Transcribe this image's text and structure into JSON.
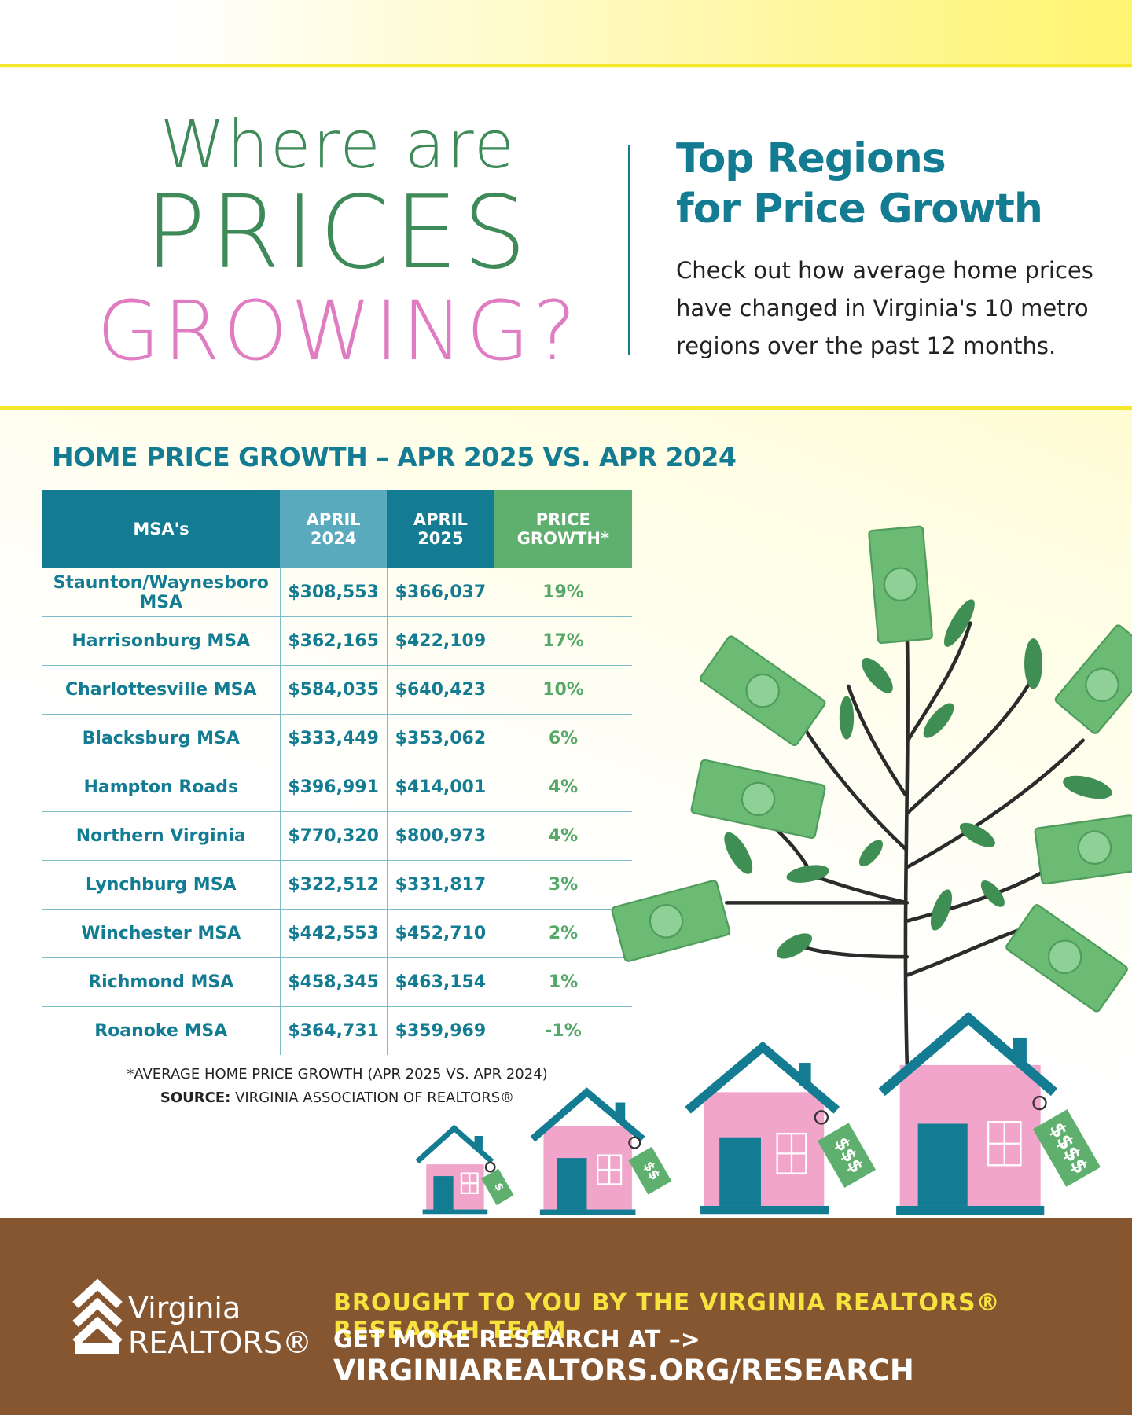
{
  "header": {
    "title_line1": "Where are",
    "title_line2": "PRICES",
    "title_line3": "GROWING?",
    "subtitle_line1": "Top Regions",
    "subtitle_line2": "for Price Growth",
    "description": "Check out how average home prices have changed in Virginia's 10 metro regions over the past 12 months."
  },
  "table": {
    "title": "HOME PRICE GROWTH – APR 2025 VS. APR 2024",
    "columns": [
      "MSA's",
      "APRIL 2024",
      "APRIL 2025",
      "PRICE GROWTH*"
    ],
    "rows": [
      [
        "Staunton/Waynesboro MSA",
        "$308,553",
        "$366,037",
        "19%"
      ],
      [
        "Harrisonburg MSA",
        "$362,165",
        "$422,109",
        "17%"
      ],
      [
        "Charlottesville MSA",
        "$584,035",
        "$640,423",
        "10%"
      ],
      [
        "Blacksburg MSA",
        "$333,449",
        "$353,062",
        "6%"
      ],
      [
        "Hampton Roads",
        "$396,991",
        "$414,001",
        "4%"
      ],
      [
        "Northern Virginia",
        "$770,320",
        "$800,973",
        "4%"
      ],
      [
        "Lynchburg MSA",
        "$322,512",
        "$331,817",
        "3%"
      ],
      [
        "Winchester MSA",
        "$442,553",
        "$452,710",
        "2%"
      ],
      [
        "Richmond MSA",
        "$458,345",
        "$463,154",
        "1%"
      ],
      [
        "Roanoke MSA",
        "$364,731",
        "$359,969",
        "-1%"
      ]
    ],
    "footnote": "*AVERAGE HOME PRICE GROWTH (APR 2025 VS. APR 2024)",
    "source_label": "SOURCE:",
    "source": "VIRGINIA ASSOCIATION OF REALTORS®"
  },
  "illustration": {
    "tags": [
      "$",
      "$$",
      "$$$",
      "$$$$"
    ]
  },
  "footer": {
    "logo_line1": "Virginia",
    "logo_line2": "REALTORS®",
    "credit": "BROUGHT TO YOU BY THE VIRGINIA REALTORS® RESEARCH TEAM",
    "link_label": "GET MORE RESEARCH AT –>",
    "link_url": "VIRGINIAREALTORS.ORG/RESEARCH"
  }
}
